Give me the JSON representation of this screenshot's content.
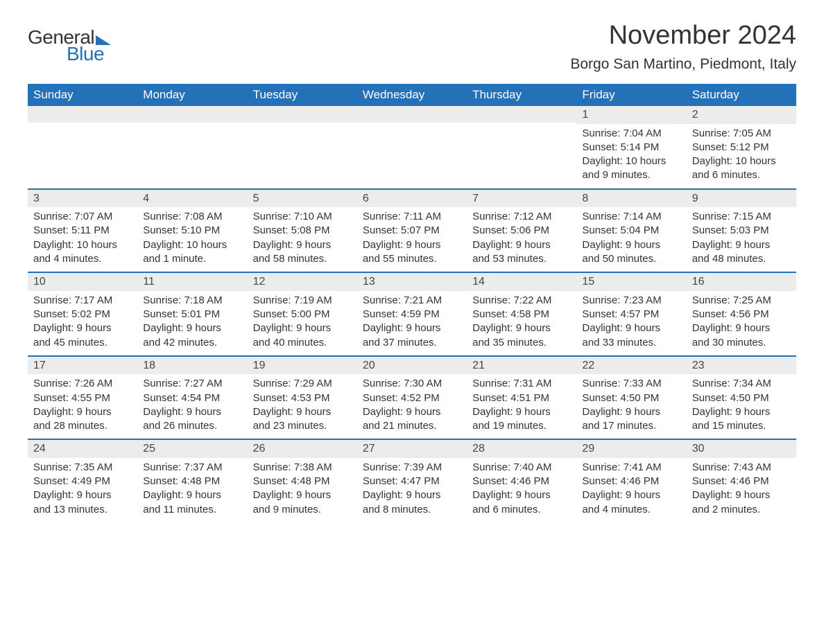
{
  "logo": {
    "general": "General",
    "blue": "Blue"
  },
  "header": {
    "month_title": "November 2024",
    "location": "Borgo San Martino, Piedmont, Italy"
  },
  "style": {
    "accent_color": "#2471b8",
    "header_text_color": "#ffffff",
    "daynum_bg": "#ececec",
    "body_bg": "#ffffff",
    "text_color": "#333333",
    "day_header_fontsize": 17,
    "cell_fontsize": 15,
    "title_fontsize": 38,
    "location_fontsize": 21,
    "columns": 7,
    "rows": 5
  },
  "day_names": [
    "Sunday",
    "Monday",
    "Tuesday",
    "Wednesday",
    "Thursday",
    "Friday",
    "Saturday"
  ],
  "weeks": [
    [
      {
        "blank": true
      },
      {
        "blank": true
      },
      {
        "blank": true
      },
      {
        "blank": true
      },
      {
        "blank": true
      },
      {
        "num": "1",
        "sunrise": "Sunrise: 7:04 AM",
        "sunset": "Sunset: 5:14 PM",
        "day1": "Daylight: 10 hours",
        "day2": "and 9 minutes."
      },
      {
        "num": "2",
        "sunrise": "Sunrise: 7:05 AM",
        "sunset": "Sunset: 5:12 PM",
        "day1": "Daylight: 10 hours",
        "day2": "and 6 minutes."
      }
    ],
    [
      {
        "num": "3",
        "sunrise": "Sunrise: 7:07 AM",
        "sunset": "Sunset: 5:11 PM",
        "day1": "Daylight: 10 hours",
        "day2": "and 4 minutes."
      },
      {
        "num": "4",
        "sunrise": "Sunrise: 7:08 AM",
        "sunset": "Sunset: 5:10 PM",
        "day1": "Daylight: 10 hours",
        "day2": "and 1 minute."
      },
      {
        "num": "5",
        "sunrise": "Sunrise: 7:10 AM",
        "sunset": "Sunset: 5:08 PM",
        "day1": "Daylight: 9 hours",
        "day2": "and 58 minutes."
      },
      {
        "num": "6",
        "sunrise": "Sunrise: 7:11 AM",
        "sunset": "Sunset: 5:07 PM",
        "day1": "Daylight: 9 hours",
        "day2": "and 55 minutes."
      },
      {
        "num": "7",
        "sunrise": "Sunrise: 7:12 AM",
        "sunset": "Sunset: 5:06 PM",
        "day1": "Daylight: 9 hours",
        "day2": "and 53 minutes."
      },
      {
        "num": "8",
        "sunrise": "Sunrise: 7:14 AM",
        "sunset": "Sunset: 5:04 PM",
        "day1": "Daylight: 9 hours",
        "day2": "and 50 minutes."
      },
      {
        "num": "9",
        "sunrise": "Sunrise: 7:15 AM",
        "sunset": "Sunset: 5:03 PM",
        "day1": "Daylight: 9 hours",
        "day2": "and 48 minutes."
      }
    ],
    [
      {
        "num": "10",
        "sunrise": "Sunrise: 7:17 AM",
        "sunset": "Sunset: 5:02 PM",
        "day1": "Daylight: 9 hours",
        "day2": "and 45 minutes."
      },
      {
        "num": "11",
        "sunrise": "Sunrise: 7:18 AM",
        "sunset": "Sunset: 5:01 PM",
        "day1": "Daylight: 9 hours",
        "day2": "and 42 minutes."
      },
      {
        "num": "12",
        "sunrise": "Sunrise: 7:19 AM",
        "sunset": "Sunset: 5:00 PM",
        "day1": "Daylight: 9 hours",
        "day2": "and 40 minutes."
      },
      {
        "num": "13",
        "sunrise": "Sunrise: 7:21 AM",
        "sunset": "Sunset: 4:59 PM",
        "day1": "Daylight: 9 hours",
        "day2": "and 37 minutes."
      },
      {
        "num": "14",
        "sunrise": "Sunrise: 7:22 AM",
        "sunset": "Sunset: 4:58 PM",
        "day1": "Daylight: 9 hours",
        "day2": "and 35 minutes."
      },
      {
        "num": "15",
        "sunrise": "Sunrise: 7:23 AM",
        "sunset": "Sunset: 4:57 PM",
        "day1": "Daylight: 9 hours",
        "day2": "and 33 minutes."
      },
      {
        "num": "16",
        "sunrise": "Sunrise: 7:25 AM",
        "sunset": "Sunset: 4:56 PM",
        "day1": "Daylight: 9 hours",
        "day2": "and 30 minutes."
      }
    ],
    [
      {
        "num": "17",
        "sunrise": "Sunrise: 7:26 AM",
        "sunset": "Sunset: 4:55 PM",
        "day1": "Daylight: 9 hours",
        "day2": "and 28 minutes."
      },
      {
        "num": "18",
        "sunrise": "Sunrise: 7:27 AM",
        "sunset": "Sunset: 4:54 PM",
        "day1": "Daylight: 9 hours",
        "day2": "and 26 minutes."
      },
      {
        "num": "19",
        "sunrise": "Sunrise: 7:29 AM",
        "sunset": "Sunset: 4:53 PM",
        "day1": "Daylight: 9 hours",
        "day2": "and 23 minutes."
      },
      {
        "num": "20",
        "sunrise": "Sunrise: 7:30 AM",
        "sunset": "Sunset: 4:52 PM",
        "day1": "Daylight: 9 hours",
        "day2": "and 21 minutes."
      },
      {
        "num": "21",
        "sunrise": "Sunrise: 7:31 AM",
        "sunset": "Sunset: 4:51 PM",
        "day1": "Daylight: 9 hours",
        "day2": "and 19 minutes."
      },
      {
        "num": "22",
        "sunrise": "Sunrise: 7:33 AM",
        "sunset": "Sunset: 4:50 PM",
        "day1": "Daylight: 9 hours",
        "day2": "and 17 minutes."
      },
      {
        "num": "23",
        "sunrise": "Sunrise: 7:34 AM",
        "sunset": "Sunset: 4:50 PM",
        "day1": "Daylight: 9 hours",
        "day2": "and 15 minutes."
      }
    ],
    [
      {
        "num": "24",
        "sunrise": "Sunrise: 7:35 AM",
        "sunset": "Sunset: 4:49 PM",
        "day1": "Daylight: 9 hours",
        "day2": "and 13 minutes."
      },
      {
        "num": "25",
        "sunrise": "Sunrise: 7:37 AM",
        "sunset": "Sunset: 4:48 PM",
        "day1": "Daylight: 9 hours",
        "day2": "and 11 minutes."
      },
      {
        "num": "26",
        "sunrise": "Sunrise: 7:38 AM",
        "sunset": "Sunset: 4:48 PM",
        "day1": "Daylight: 9 hours",
        "day2": "and 9 minutes."
      },
      {
        "num": "27",
        "sunrise": "Sunrise: 7:39 AM",
        "sunset": "Sunset: 4:47 PM",
        "day1": "Daylight: 9 hours",
        "day2": "and 8 minutes."
      },
      {
        "num": "28",
        "sunrise": "Sunrise: 7:40 AM",
        "sunset": "Sunset: 4:46 PM",
        "day1": "Daylight: 9 hours",
        "day2": "and 6 minutes."
      },
      {
        "num": "29",
        "sunrise": "Sunrise: 7:41 AM",
        "sunset": "Sunset: 4:46 PM",
        "day1": "Daylight: 9 hours",
        "day2": "and 4 minutes."
      },
      {
        "num": "30",
        "sunrise": "Sunrise: 7:43 AM",
        "sunset": "Sunset: 4:46 PM",
        "day1": "Daylight: 9 hours",
        "day2": "and 2 minutes."
      }
    ]
  ]
}
